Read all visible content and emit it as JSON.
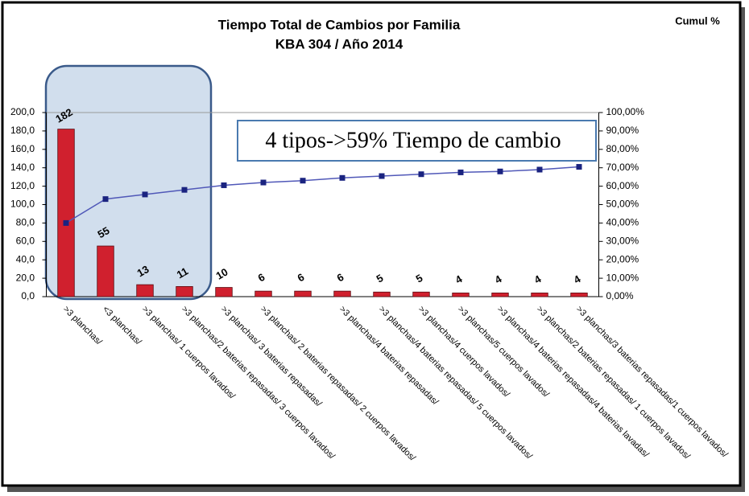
{
  "chart_data": {
    "type": "bar",
    "title": "Tiempo Total de Cambios  por Familia",
    "subtitle": "KBA 304 / Año 2014",
    "y2label": "Cumul %",
    "annotation": "4 tipos->59% Tiempo de cambio",
    "categories": [
      ">3 planchas/",
      "<3 planchas/",
      ">3 planchas/ 1 cuerpos lavados/",
      ">3 planchas/2 baterias repasadas/ 3 cuerpos lavados/",
      ">3 planchas/ 3 baterias repasadas/",
      ">3 planchas/ 2 baterias repasadas/ 2 cuerpos lavados/",
      null,
      ">3 planchas/4 baterias repasadas/",
      ">3 planchas/4 baterias repasadas/ 5 cuerpos lavados/",
      ">3 planchas/4 cuerpos lavados/",
      ">3 planchas/5 cuerpos lavados/",
      ">3 planchas/4 baterias repasadas/4 baterias lavadas/",
      ">3 planchas/2 baterias repasadas/ 1 cuerpos lavados/",
      ">3 planchas/3 baterias repasadas/1 cuerpos lavados/"
    ],
    "series": [
      {
        "type": "bar",
        "color": "#d0202e",
        "values": [
          182,
          55,
          13,
          11,
          10,
          6,
          6,
          6,
          5,
          5,
          4,
          4,
          4,
          4
        ]
      },
      {
        "type": "line",
        "axis": "y2",
        "color": "#5058b8",
        "marker_color": "#1a2380",
        "values": [
          40,
          53,
          55.5,
          58,
          60.5,
          62,
          63,
          64.5,
          65.5,
          66.5,
          67.5,
          68,
          69,
          70.5
        ]
      }
    ],
    "ylim": [
      0,
      200
    ],
    "yticks": [
      {
        "value": 0,
        "label": "0,0"
      },
      {
        "value": 20,
        "label": "20,0"
      },
      {
        "value": 40,
        "label": "40,0"
      },
      {
        "value": 60,
        "label": "60,0"
      },
      {
        "value": 80,
        "label": "80,0"
      },
      {
        "value": 100,
        "label": "100,0"
      },
      {
        "value": 120,
        "label": "120,0"
      },
      {
        "value": 140,
        "label": "140,0"
      },
      {
        "value": 160,
        "label": "160,0"
      },
      {
        "value": 180,
        "label": "180,0"
      },
      {
        "value": 200,
        "label": "200,0"
      }
    ],
    "y2lim": [
      0,
      100
    ],
    "y2ticks": [
      {
        "value": 0,
        "label": "0,00%"
      },
      {
        "value": 10,
        "label": "10,00%"
      },
      {
        "value": 20,
        "label": "20,00%"
      },
      {
        "value": 30,
        "label": "30,00%"
      },
      {
        "value": 40,
        "label": "40,00%"
      },
      {
        "value": 50,
        "label": "50,00%"
      },
      {
        "value": 60,
        "label": "60,00%"
      },
      {
        "value": 70,
        "label": "70,00%"
      },
      {
        "value": 80,
        "label": "80,00%"
      },
      {
        "value": 90,
        "label": "90,00%"
      },
      {
        "value": 100,
        "label": "100,00%"
      }
    ],
    "grid": false
  }
}
